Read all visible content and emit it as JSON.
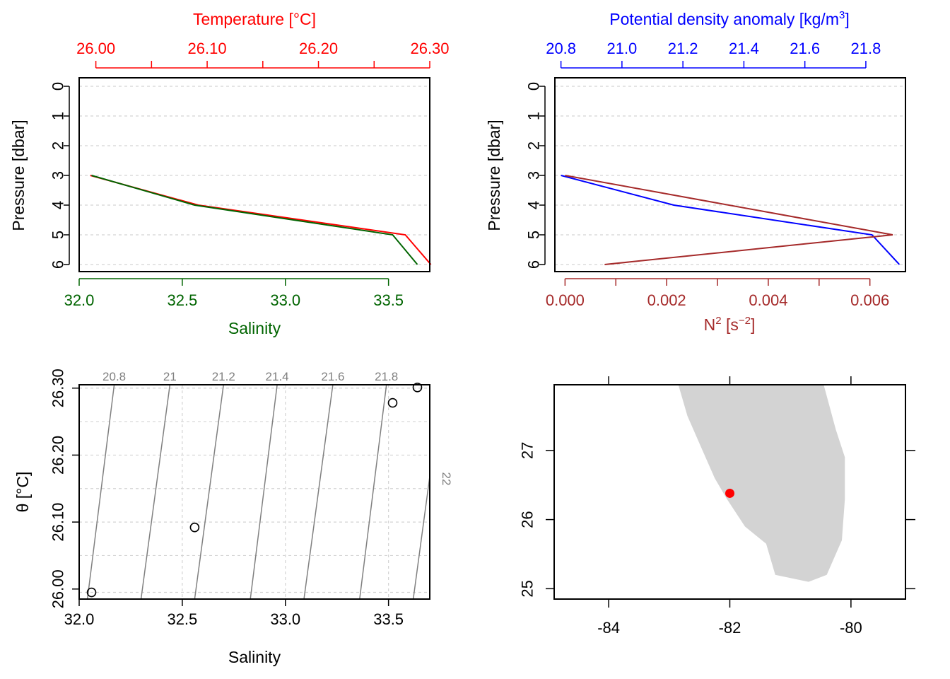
{
  "colors": {
    "temperature": "#ff0000",
    "salinity": "#006400",
    "density": "#0000ff",
    "n2": "#a52a2a",
    "axis": "#000000",
    "grid": "#d3d3d3",
    "isopycnal": "#808080",
    "land": "#d3d3d3",
    "station": "#ff0000"
  },
  "chart_data": [
    {
      "type": "line",
      "panel": "temperature-salinity-profile",
      "xlabel_top": "Temperature [°C]",
      "xlabel_bottom": "Salinity",
      "ylabel": "Pressure [dbar]",
      "y_ticks": [
        "0",
        "1",
        "2",
        "3",
        "4",
        "5",
        "6"
      ],
      "ylim": [
        0,
        6
      ],
      "y_reversed": true,
      "top_ticks": [
        "26.00",
        "26.10",
        "26.20",
        "26.30"
      ],
      "top_tick_values": [
        26.0,
        26.1,
        26.2,
        26.3
      ],
      "top_minor_ticks": [
        26.05,
        26.15,
        26.25
      ],
      "top_xlim": [
        25.985,
        26.3
      ],
      "bottom_ticks": [
        "32.0",
        "32.5",
        "33.0",
        "33.5"
      ],
      "bottom_tick_values": [
        32.0,
        32.5,
        33.0,
        33.5
      ],
      "bottom_xlim": [
        32.0,
        33.7
      ],
      "grid": true,
      "series": [
        {
          "name": "Temperature",
          "axis": "top",
          "pressure": [
            3,
            4,
            5,
            6
          ],
          "values": [
            25.995,
            26.092,
            26.278,
            26.301
          ]
        },
        {
          "name": "Salinity",
          "axis": "bottom",
          "pressure": [
            3,
            4,
            5,
            6
          ],
          "values": [
            32.06,
            32.56,
            33.52,
            33.64
          ]
        }
      ]
    },
    {
      "type": "line",
      "panel": "density-n2-profile",
      "xlabel_top": "Potential density anomaly [kg/m",
      "xlabel_top_sup": "3",
      "xlabel_top_end": "]",
      "xlabel_bottom": "N",
      "xlabel_bottom_sup": "2",
      "xlabel_bottom_mid": " [s",
      "xlabel_bottom_sup2": "−2",
      "xlabel_bottom_end": "]",
      "ylabel": "Pressure [dbar]",
      "y_ticks": [
        "0",
        "1",
        "2",
        "3",
        "4",
        "5",
        "6"
      ],
      "ylim": [
        0,
        6
      ],
      "y_reversed": true,
      "top_ticks": [
        "20.8",
        "21.0",
        "21.2",
        "21.4",
        "21.6",
        "21.8"
      ],
      "top_tick_values": [
        20.8,
        21.0,
        21.2,
        21.4,
        21.6,
        21.8
      ],
      "top_xlim": [
        20.78,
        21.93
      ],
      "bottom_ticks": [
        "0.000",
        "0.002",
        "0.004",
        "0.006"
      ],
      "bottom_tick_values": [
        0.0,
        0.002,
        0.004,
        0.006
      ],
      "bottom_minor_ticks": [
        0.001,
        0.003,
        0.005
      ],
      "bottom_xlim": [
        -0.0002,
        0.0067
      ],
      "grid": true,
      "series": [
        {
          "name": "Potential density anomaly",
          "axis": "top",
          "pressure": [
            3,
            4,
            5,
            6
          ],
          "values": [
            20.8,
            21.17,
            21.82,
            21.91
          ]
        },
        {
          "name": "N2",
          "axis": "bottom",
          "pressure": [
            3,
            5,
            6
          ],
          "values": [
            0.0,
            0.00645,
            0.00078
          ]
        }
      ]
    },
    {
      "type": "scatter",
      "panel": "ts-diagram",
      "xlabel": "Salinity",
      "ylabel": "θ [°C]",
      "x_ticks": [
        "32.0",
        "32.5",
        "33.0",
        "33.5"
      ],
      "x_tick_values": [
        32.0,
        32.5,
        33.0,
        33.5
      ],
      "xlim": [
        32.0,
        33.7
      ],
      "y_ticks": [
        "26.00",
        "26.10",
        "26.20",
        "26.30"
      ],
      "y_tick_values": [
        26.0,
        26.1,
        26.2,
        26.3
      ],
      "ylim": [
        25.985,
        26.305
      ],
      "grid": true,
      "points": [
        {
          "x": 32.06,
          "y": 25.995
        },
        {
          "x": 32.56,
          "y": 26.092
        },
        {
          "x": 33.52,
          "y": 26.278
        },
        {
          "x": 33.64,
          "y": 26.301
        }
      ],
      "isopycnals": [
        {
          "label": "20.8",
          "s_bottom": 32.04,
          "s_top": 32.17
        },
        {
          "label": "21",
          "s_bottom": 32.3,
          "s_top": 32.44
        },
        {
          "label": "21.2",
          "s_bottom": 32.56,
          "s_top": 32.7
        },
        {
          "label": "21.4",
          "s_bottom": 32.83,
          "s_top": 32.96
        },
        {
          "label": "21.6",
          "s_bottom": 33.09,
          "s_top": 33.23
        },
        {
          "label": "21.8",
          "s_bottom": 33.36,
          "s_top": 33.49
        },
        {
          "label": "22",
          "s_bottom": 33.62,
          "s_top": 33.76
        }
      ]
    },
    {
      "type": "map",
      "panel": "station-map",
      "x_ticks": [
        "-84",
        "-82",
        "-80"
      ],
      "x_tick_values": [
        -84,
        -82,
        -80
      ],
      "xlim": [
        -84.9,
        -79.1
      ],
      "y_ticks": [
        "25",
        "26",
        "27"
      ],
      "y_tick_values": [
        25,
        26,
        27
      ],
      "ylim": [
        24.85,
        27.95
      ],
      "land_polygon": [
        [
          -82.85,
          27.95
        ],
        [
          -82.7,
          27.5
        ],
        [
          -82.45,
          27.0
        ],
        [
          -82.25,
          26.6
        ],
        [
          -82.05,
          26.3
        ],
        [
          -81.75,
          25.9
        ],
        [
          -81.4,
          25.65
        ],
        [
          -81.25,
          25.2
        ],
        [
          -80.7,
          25.1
        ],
        [
          -80.4,
          25.2
        ],
        [
          -80.15,
          25.7
        ],
        [
          -80.1,
          26.3
        ],
        [
          -80.1,
          26.9
        ],
        [
          -80.25,
          27.3
        ],
        [
          -80.45,
          27.95
        ]
      ],
      "station": {
        "lon": -82.0,
        "lat": 26.38
      }
    }
  ]
}
